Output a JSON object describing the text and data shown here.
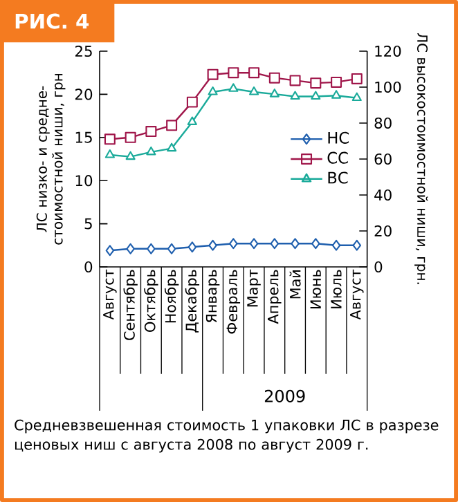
{
  "chart_data": {
    "type": "line",
    "title": "РИС. 4",
    "ylabel": "ЛС низко- и средне-стоимостной ниши, грн",
    "y2label": "ЛС высокостоимостной ниши, грн.",
    "categories": [
      "Август",
      "Сентябрь",
      "Октябрь",
      "Ноябрь",
      "Декабрь",
      "Январь",
      "Февраль",
      "Март",
      "Апрель",
      "Май",
      "Июнь",
      "Июль",
      "Август"
    ],
    "series": [
      {
        "name": "НС",
        "color": "#1f5fae",
        "marker": "diamond",
        "values": [
          1.9,
          2.1,
          2.1,
          2.1,
          2.3,
          2.5,
          2.7,
          2.7,
          2.7,
          2.7,
          2.7,
          2.5,
          2.5
        ]
      },
      {
        "name": "СС",
        "color": "#a0164a",
        "marker": "square",
        "values": [
          14.8,
          15.0,
          15.7,
          16.4,
          19.1,
          22.3,
          22.5,
          22.5,
          21.9,
          21.6,
          21.3,
          21.4,
          21.8
        ]
      },
      {
        "name": "ВС",
        "color": "#1aaa9a",
        "marker": "triangle",
        "axis": "y2",
        "values": [
          62.3,
          61.3,
          63.9,
          65.9,
          80.6,
          97.3,
          99.1,
          97.3,
          96.1,
          94.8,
          94.8,
          95.3,
          94.0
        ]
      }
    ],
    "ylim": [
      0,
      25
    ],
    "yticks": [
      0,
      5,
      10,
      15,
      20,
      25
    ],
    "y2lim": [
      0,
      120
    ],
    "y2ticks": [
      0,
      20,
      40,
      60,
      80,
      100,
      120
    ],
    "legend": "right",
    "grid": false,
    "line_style": "solid",
    "annotations": [
      "2009",
      "Средневзвешенная стоимость 1 упаковки ЛС в разрезе ценовых ниш с августа 2008 по август 2009 г."
    ]
  }
}
